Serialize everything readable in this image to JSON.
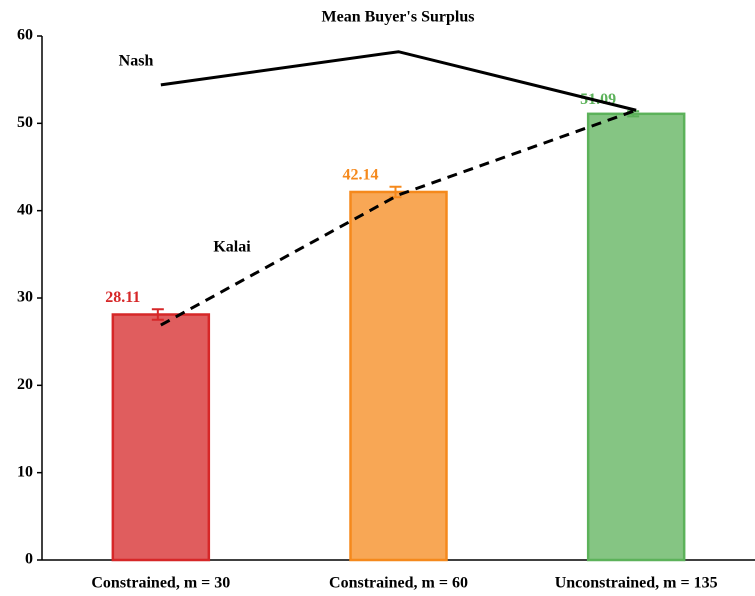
{
  "chart_data": {
    "type": "bar",
    "title": "Mean Buyer's Surplus",
    "categories": [
      "Constrained, m = 30",
      "Constrained, m = 60",
      "Unconstrained, m = 135"
    ],
    "values": [
      28.11,
      42.14,
      51.09
    ],
    "errors": [
      0.6,
      0.6,
      0.3
    ],
    "colors": [
      "#d62728",
      "#f5891c",
      "#5cb25a"
    ],
    "lines": [
      {
        "name": "Nash",
        "values": [
          54.4,
          58.2,
          51.5
        ],
        "color": "#000000",
        "style": "solid"
      },
      {
        "name": "Kalai",
        "values": [
          26.9,
          41.8,
          51.5
        ],
        "color": "#000000",
        "style": "dashed"
      }
    ],
    "ylim": [
      0,
      60
    ],
    "yticks": [
      0,
      10,
      20,
      30,
      40,
      50,
      60
    ],
    "grid": false
  }
}
